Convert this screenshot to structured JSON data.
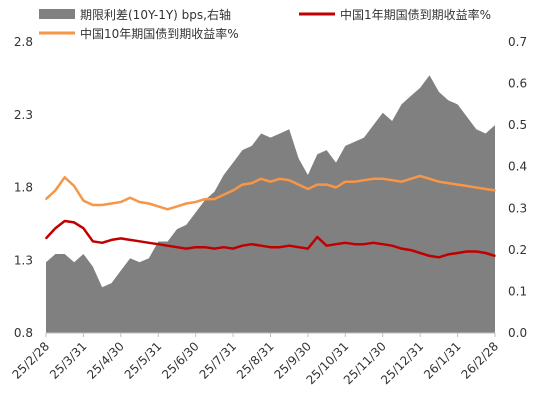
{
  "chart_data": {
    "type": "line",
    "x": [
      "25/2/28",
      "25/3/7",
      "25/3/14",
      "25/3/21",
      "25/3/31",
      "25/4/7",
      "25/4/14",
      "25/4/21",
      "25/4/30",
      "25/5/9",
      "25/5/16",
      "25/5/23",
      "25/5/31",
      "25/6/7",
      "25/6/14",
      "25/6/21",
      "25/6/30",
      "25/7/7",
      "25/7/14",
      "25/7/21",
      "25/7/31",
      "25/8/7",
      "25/8/14",
      "25/8/21",
      "25/8/31",
      "25/9/7",
      "25/9/14",
      "25/9/21",
      "25/9/30",
      "25/10/9",
      "25/10/16",
      "25/10/23",
      "25/10/31",
      "25/11/7",
      "25/11/14",
      "25/11/21",
      "25/11/30",
      "25/12/7",
      "25/12/14",
      "25/12/21",
      "25/12/31",
      "26/1/7",
      "26/1/14",
      "26/1/21",
      "26/1/31",
      "26/2/7",
      "26/2/14",
      "26/2/21",
      "26/2/28"
    ],
    "x_tick_labels": [
      "25/2/28",
      "25/3/31",
      "25/4/30",
      "25/5/31",
      "25/6/30",
      "25/7/31",
      "25/8/31",
      "25/9/30",
      "25/10/31",
      "25/11/30",
      "25/12/31",
      "26/1/31",
      "26/2/28"
    ],
    "series": [
      {
        "name": "期限利差(10Y-1Y) bps,右轴",
        "axis": "right",
        "kind": "area",
        "color": "#808080",
        "values": [
          0.17,
          0.19,
          0.19,
          0.17,
          0.19,
          0.16,
          0.11,
          0.12,
          0.15,
          0.18,
          0.17,
          0.18,
          0.22,
          0.22,
          0.25,
          0.26,
          0.29,
          0.32,
          0.34,
          0.38,
          0.41,
          0.44,
          0.45,
          0.48,
          0.47,
          0.48,
          0.49,
          0.42,
          0.38,
          0.43,
          0.44,
          0.41,
          0.45,
          0.46,
          0.47,
          0.5,
          0.53,
          0.51,
          0.55,
          0.57,
          0.59,
          0.62,
          0.58,
          0.56,
          0.55,
          0.52,
          0.49,
          0.48,
          0.5
        ]
      },
      {
        "name": "中国1年期国债到期收益率%",
        "axis": "left",
        "kind": "line",
        "color": "#c00000",
        "values": [
          1.45,
          1.52,
          1.57,
          1.56,
          1.52,
          1.43,
          1.42,
          1.44,
          1.45,
          1.44,
          1.43,
          1.42,
          1.41,
          1.4,
          1.39,
          1.38,
          1.39,
          1.39,
          1.38,
          1.39,
          1.38,
          1.4,
          1.41,
          1.4,
          1.39,
          1.39,
          1.4,
          1.39,
          1.38,
          1.46,
          1.4,
          1.41,
          1.42,
          1.41,
          1.41,
          1.42,
          1.41,
          1.4,
          1.38,
          1.37,
          1.35,
          1.33,
          1.32,
          1.34,
          1.35,
          1.36,
          1.36,
          1.35,
          1.33
        ]
      },
      {
        "name": "中国10年期国债到期收益率%",
        "axis": "left",
        "kind": "line",
        "color": "#f79646",
        "values": [
          1.72,
          1.78,
          1.87,
          1.81,
          1.71,
          1.68,
          1.68,
          1.69,
          1.7,
          1.73,
          1.7,
          1.69,
          1.67,
          1.65,
          1.67,
          1.69,
          1.7,
          1.72,
          1.72,
          1.75,
          1.78,
          1.82,
          1.83,
          1.86,
          1.84,
          1.86,
          1.85,
          1.82,
          1.79,
          1.82,
          1.82,
          1.8,
          1.84,
          1.84,
          1.85,
          1.86,
          1.86,
          1.85,
          1.84,
          1.86,
          1.88,
          1.86,
          1.84,
          1.83,
          1.82,
          1.81,
          1.8,
          1.79,
          1.78
        ]
      }
    ],
    "y_left": {
      "range": [
        0.8,
        2.8
      ],
      "ticks": [
        "0.8",
        "1.3",
        "1.8",
        "2.3",
        "2.8"
      ]
    },
    "y_right": {
      "range": [
        0.0,
        0.7
      ],
      "ticks": [
        "0.0",
        "0.1",
        "0.2",
        "0.3",
        "0.4",
        "0.5",
        "0.6",
        "0.7"
      ]
    },
    "grid": false,
    "legend_position": "top"
  }
}
